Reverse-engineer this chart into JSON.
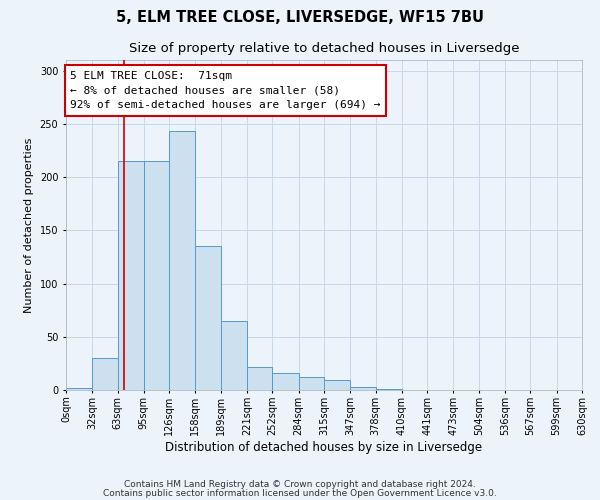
{
  "title": "5, ELM TREE CLOSE, LIVERSEDGE, WF15 7BU",
  "subtitle": "Size of property relative to detached houses in Liversedge",
  "xlabel": "Distribution of detached houses by size in Liversedge",
  "ylabel": "Number of detached properties",
  "bin_edges": [
    0,
    32,
    63,
    95,
    126,
    158,
    189,
    221,
    252,
    284,
    315,
    347,
    378,
    410,
    441,
    473,
    504,
    536,
    567,
    599,
    630
  ],
  "bar_heights": [
    2,
    30,
    215,
    215,
    243,
    135,
    65,
    22,
    16,
    12,
    9,
    3,
    1,
    0,
    0,
    0,
    0,
    0,
    0,
    0
  ],
  "bar_facecolor": "#cce0f0",
  "bar_edgecolor": "#5599cc",
  "bar_linewidth": 0.7,
  "grid_color": "#c8d8e8",
  "background_color": "#edf3fa",
  "vline_x": 71,
  "vline_color": "#cc0000",
  "vline_linewidth": 1.2,
  "annotation_text": "5 ELM TREE CLOSE:  71sqm\n← 8% of detached houses are smaller (58)\n92% of semi-detached houses are larger (694) →",
  "annotation_box_edgecolor": "#cc0000",
  "annotation_box_facecolor": "#ffffff",
  "footnote1": "Contains HM Land Registry data © Crown copyright and database right 2024.",
  "footnote2": "Contains public sector information licensed under the Open Government Licence v3.0.",
  "ylim": [
    0,
    310
  ],
  "xlim": [
    0,
    630
  ],
  "title_fontsize": 10.5,
  "subtitle_fontsize": 9.5,
  "xlabel_fontsize": 8.5,
  "ylabel_fontsize": 8,
  "tick_fontsize": 7,
  "annotation_fontsize": 8,
  "footnote_fontsize": 6.5
}
